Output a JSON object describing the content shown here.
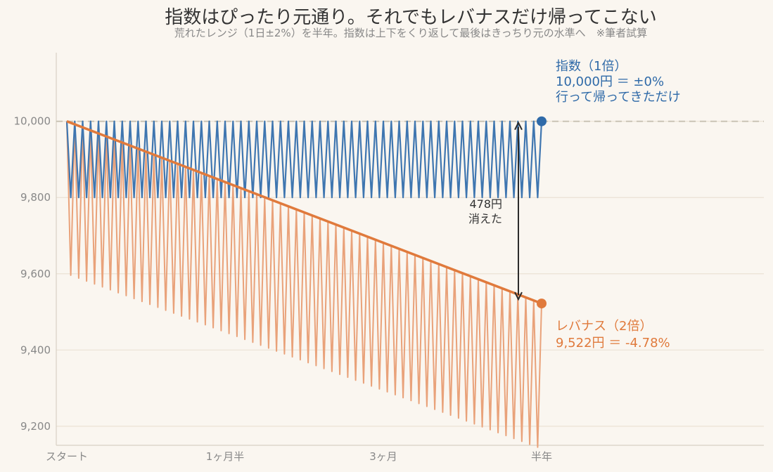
{
  "chart_data": {
    "type": "line",
    "title": "指数はぴったり元通り。それでもレバナスだけ帰ってこない",
    "subtitle": "荒れたレンジ（1日±2%）を半年。指数は上下をくり返して最後はきっちり元の水準へ　※筆者試算",
    "xlabel": "",
    "ylabel": "",
    "x_ticks": [
      "スタート",
      "1ヶ月半",
      "3ヶ月",
      "半年"
    ],
    "y_ticks": [
      "9,200",
      "9,400",
      "9,600",
      "9,800",
      "10,000"
    ],
    "y_tick_values": [
      9200,
      9400,
      9600,
      9800,
      10000
    ],
    "ylim": [
      9150,
      10180
    ],
    "days": 120,
    "daily_move_pct": 2,
    "grid": true,
    "series": [
      {
        "name": "指数（1倍）",
        "leverage": 1,
        "color": "#3f76b0",
        "start": 10000,
        "end": 10000
      },
      {
        "name": "レバナス（2倍）",
        "leverage": 2,
        "color": "#e9a27a",
        "trend_color": "#e07a3c",
        "start": 10000,
        "end": 9522
      }
    ],
    "reference_line": {
      "value": 10000,
      "color": "#c9c3b5"
    },
    "annotations": {
      "index_label": [
        "指数（1倍）",
        "10,000円 ＝ ±0%",
        "行って帰ってきただけ"
      ],
      "leveraged_label": [
        "レバナス（2倍）",
        "9,522円 ＝ -4.78%"
      ],
      "gap_value": 478,
      "gap_label": [
        "478円",
        "消えた"
      ]
    }
  }
}
